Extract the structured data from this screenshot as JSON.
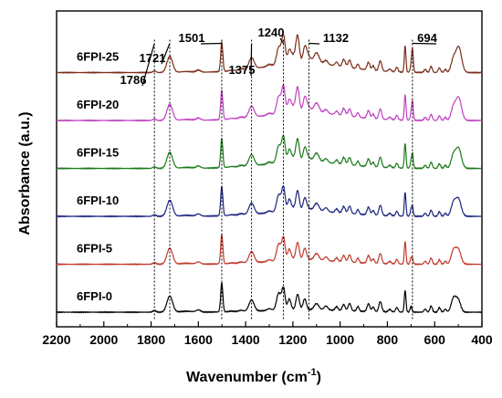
{
  "chart_data": {
    "type": "line",
    "title": "",
    "xlabel": "Wavenumber (cm",
    "xlabel_sup": "-1",
    "xlabel_close": ")",
    "ylabel": "Absorbance (a.u.)",
    "xlim": [
      2200,
      400
    ],
    "x_reversed": true,
    "xticks": [
      2200,
      2000,
      1800,
      1600,
      1400,
      1200,
      1000,
      800,
      600,
      400
    ],
    "xtick_labels": [
      "2200",
      "2000",
      "1800",
      "1600",
      "1400",
      "1200",
      "1000",
      "800",
      "600",
      "400"
    ],
    "y_offset_step": 1,
    "legend": "none",
    "grid": false,
    "peaks": [
      {
        "label": "1786",
        "x": 1786
      },
      {
        "label": "1721",
        "x": 1721
      },
      {
        "label": "1501",
        "x": 1501
      },
      {
        "label": "1375",
        "x": 1375
      },
      {
        "label": "1240",
        "x": 1240
      },
      {
        "label": "1132",
        "x": 1132
      },
      {
        "label": "694",
        "x": 694
      }
    ],
    "series": [
      {
        "name": "6FPI-0",
        "color": "#000000",
        "offset": 0,
        "f6": 0
      },
      {
        "name": "6FPI-5",
        "color": "#c0392b",
        "offset": 1,
        "f6": 0.2
      },
      {
        "name": "6FPI-10",
        "color": "#1a237e",
        "offset": 2,
        "f6": 0.4
      },
      {
        "name": "6FPI-15",
        "color": "#1b7a1b",
        "offset": 3,
        "f6": 0.6
      },
      {
        "name": "6FPI-20",
        "color": "#c040c0",
        "offset": 4,
        "f6": 0.8
      },
      {
        "name": "6FPI-25",
        "color": "#7b2e1a",
        "offset": 5,
        "f6": 1.0
      }
    ]
  }
}
